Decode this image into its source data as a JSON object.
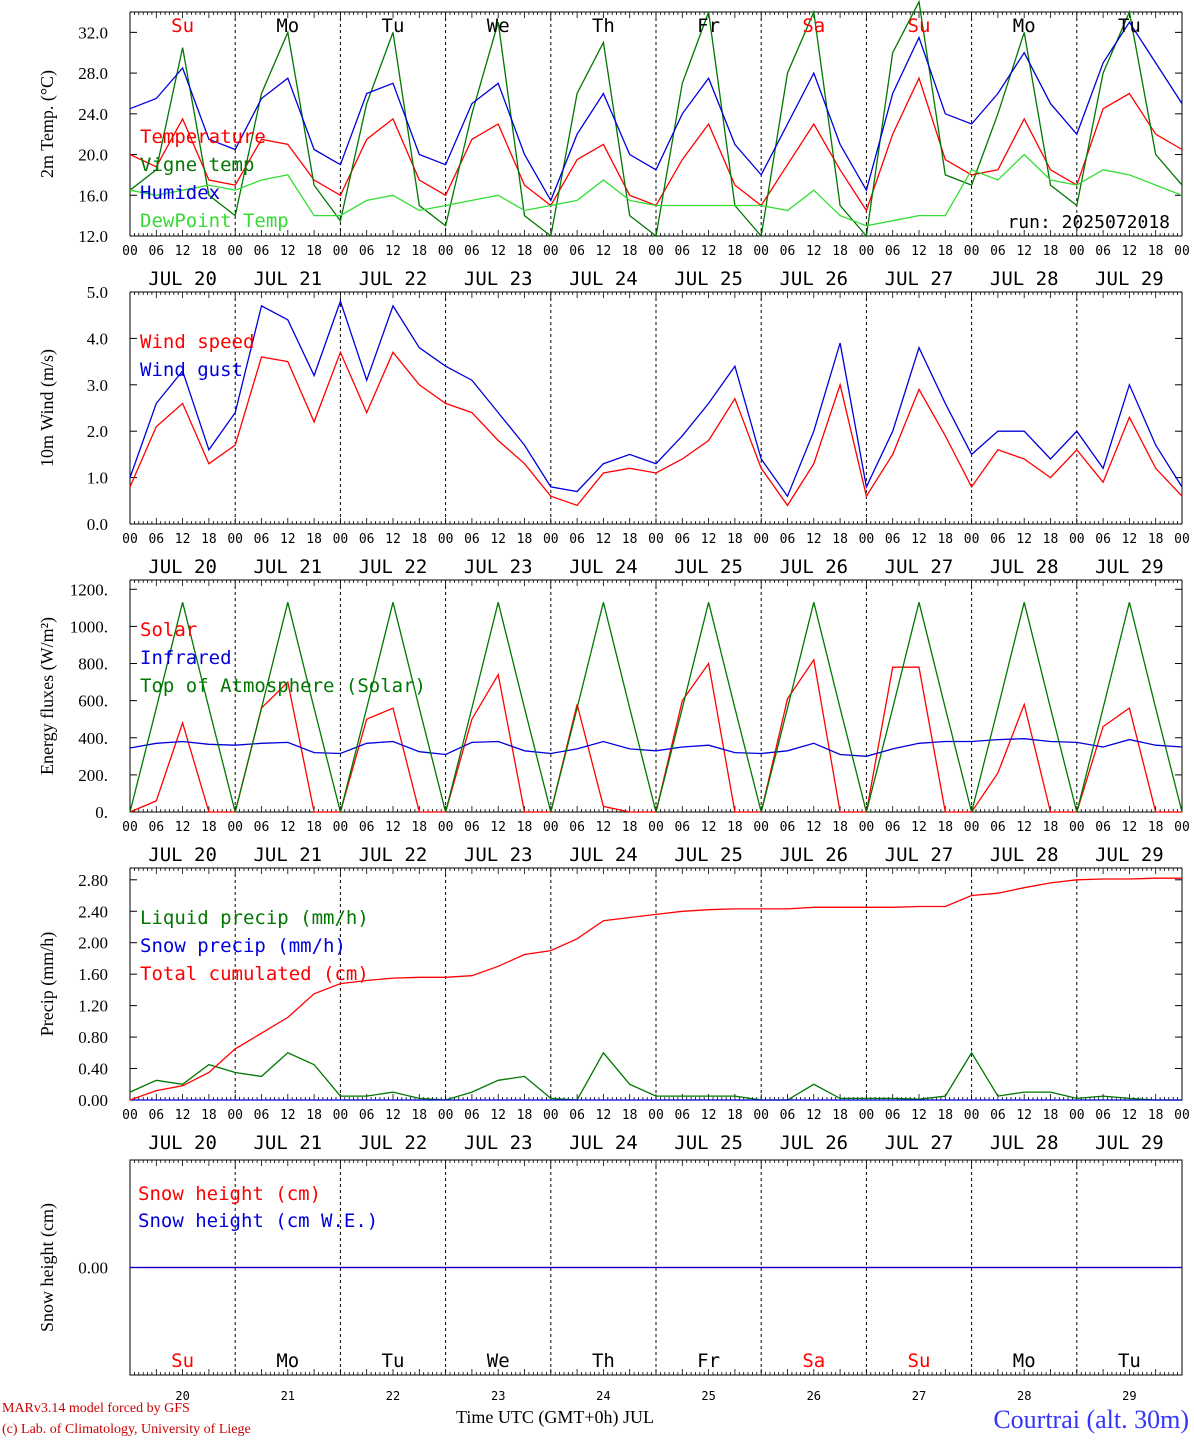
{
  "footer": {
    "credit1": "MARv3.14 model forced by GFS",
    "credit2": "(c) Lab. of Climatology, University of Liege",
    "xaxis_title": "Time UTC (GMT+0h) JUL",
    "station": "Courtrai (alt. 30m)",
    "run_label": "run: 2025072018"
  },
  "colors": {
    "red": "#ff0000",
    "blue": "#0000dd",
    "green": "#007700",
    "lightgreen": "#33dd33",
    "station": "#3333ff",
    "credit": "#cc0000"
  },
  "time_axis": {
    "hour_ticks": [
      "00",
      "06",
      "12",
      "18"
    ],
    "end_tick": "00",
    "dates": [
      "JUL 20",
      "JUL 21",
      "JUL 22",
      "JUL 23",
      "JUL 24",
      "JUL 25",
      "JUL 26",
      "JUL 27",
      "JUL 28",
      "JUL 29"
    ],
    "days": [
      {
        "label": "Su",
        "weekend": true
      },
      {
        "label": "Mo",
        "weekend": false
      },
      {
        "label": "Tu",
        "weekend": false
      },
      {
        "label": "We",
        "weekend": false
      },
      {
        "label": "Th",
        "weekend": false
      },
      {
        "label": "Fr",
        "weekend": false
      },
      {
        "label": "Sa",
        "weekend": true
      },
      {
        "label": "Su",
        "weekend": true
      },
      {
        "label": "Mo",
        "weekend": false
      },
      {
        "label": "Tu",
        "weekend": false
      }
    ],
    "day_numbers": [
      "20",
      "21",
      "22",
      "23",
      "24",
      "25",
      "26",
      "27",
      "28",
      "29"
    ]
  },
  "chart_data": [
    {
      "type": "line",
      "ylabel": "2m Temp. (°C)",
      "ylim": [
        12,
        34
      ],
      "yticks": [
        "12.0",
        "16.0",
        "20.0",
        "24.0",
        "28.0",
        "32.0"
      ],
      "x": [
        0,
        6,
        12,
        18,
        24,
        30,
        36,
        42,
        48,
        54,
        60,
        66,
        72,
        78,
        84,
        90,
        96,
        102,
        108,
        114,
        120,
        126,
        132,
        138,
        144,
        150,
        156,
        162,
        168,
        174,
        180,
        186,
        192,
        198,
        204,
        210,
        216,
        222,
        228,
        234,
        240
      ],
      "legend": [
        {
          "name": "Temperature",
          "color": "red"
        },
        {
          "name": "Vigne temp",
          "color": "green"
        },
        {
          "name": "Humidex",
          "color": "blue"
        },
        {
          "name": "DewPoint Temp",
          "color": "lightgreen"
        }
      ],
      "series": [
        {
          "name": "Temperature",
          "color": "red",
          "values": [
            20,
            18.8,
            23.5,
            17.5,
            17,
            21.5,
            21,
            17.5,
            16,
            21.5,
            23.5,
            17.5,
            16,
            21.5,
            23,
            17,
            15,
            19.5,
            21,
            16,
            15,
            19.5,
            23,
            17,
            15,
            19,
            23,
            18.5,
            14.5,
            22,
            27.5,
            19.5,
            18,
            18.5,
            23.5,
            18.5,
            17,
            24.5,
            26,
            22,
            20.5
          ]
        },
        {
          "name": "Vigne temp",
          "color": "green",
          "values": [
            16.5,
            18.5,
            30.5,
            16,
            14,
            26,
            32,
            17,
            13.5,
            25,
            32,
            15,
            13,
            24,
            33,
            14,
            12,
            26,
            31,
            14,
            12,
            27,
            34,
            15,
            12,
            28,
            34,
            15,
            12,
            30,
            35,
            18,
            17,
            24,
            32,
            17,
            15,
            28,
            34,
            20,
            17
          ]
        },
        {
          "name": "Humidex",
          "color": "blue",
          "values": [
            24.5,
            25.5,
            28.5,
            21.5,
            20.5,
            25.5,
            27.5,
            20.5,
            19,
            26,
            27,
            20,
            19,
            25,
            27,
            20,
            15.5,
            22,
            26,
            20,
            18.5,
            24,
            27.5,
            21,
            18,
            23,
            28,
            21,
            16.5,
            26,
            31.5,
            24,
            23,
            26,
            30,
            25,
            22,
            29,
            33,
            29,
            25
          ]
        },
        {
          "name": "DewPoint Temp",
          "color": "lightgreen",
          "values": [
            16.5,
            16,
            16.5,
            17,
            16.5,
            17.5,
            18,
            14,
            14,
            15.5,
            16,
            14.5,
            15,
            15.5,
            16,
            14.5,
            15,
            15.5,
            17.5,
            15.5,
            15,
            15,
            15,
            15,
            15,
            14.5,
            16.5,
            14,
            13,
            13.5,
            14,
            14,
            18.5,
            17.5,
            20,
            17.5,
            17,
            18.5,
            18,
            17,
            16
          ]
        }
      ]
    },
    {
      "type": "line",
      "ylabel": "10m Wind (m/s)",
      "ylim": [
        0,
        5
      ],
      "yticks": [
        "0.0",
        "1.0",
        "2.0",
        "3.0",
        "4.0",
        "5.0"
      ],
      "x": [
        0,
        6,
        12,
        18,
        24,
        30,
        36,
        42,
        48,
        54,
        60,
        66,
        72,
        78,
        84,
        90,
        96,
        102,
        108,
        114,
        120,
        126,
        132,
        138,
        144,
        150,
        156,
        162,
        168,
        174,
        180,
        186,
        192,
        198,
        204,
        210,
        216,
        222,
        228,
        234,
        240
      ],
      "legend": [
        {
          "name": "Wind speed",
          "color": "red"
        },
        {
          "name": "Wind gust",
          "color": "blue"
        }
      ],
      "series": [
        {
          "name": "Wind speed",
          "color": "red",
          "values": [
            0.8,
            2.1,
            2.6,
            1.3,
            1.7,
            3.6,
            3.5,
            2.2,
            3.7,
            2.4,
            3.7,
            3.0,
            2.6,
            2.4,
            1.8,
            1.3,
            0.6,
            0.4,
            1.1,
            1.2,
            1.1,
            1.4,
            1.8,
            2.7,
            1.2,
            0.4,
            1.3,
            3.0,
            0.6,
            1.5,
            2.9,
            1.9,
            0.8,
            1.6,
            1.4,
            1.0,
            1.6,
            0.9,
            2.3,
            1.2,
            0.6
          ]
        },
        {
          "name": "Wind gust",
          "color": "blue",
          "values": [
            1.0,
            2.6,
            3.3,
            1.6,
            2.4,
            4.7,
            4.4,
            3.2,
            4.8,
            3.1,
            4.7,
            3.8,
            3.4,
            3.1,
            2.4,
            1.7,
            0.8,
            0.7,
            1.3,
            1.5,
            1.3,
            1.9,
            2.6,
            3.4,
            1.4,
            0.6,
            2.0,
            3.9,
            0.8,
            2.0,
            3.8,
            2.6,
            1.5,
            2.0,
            2.0,
            1.4,
            2.0,
            1.2,
            3.0,
            1.7,
            0.8
          ]
        }
      ]
    },
    {
      "type": "line",
      "ylabel": "Energy fluxes (W/m²)",
      "ylim": [
        0,
        1250
      ],
      "yticks": [
        "0.",
        "200.",
        "400.",
        "600.",
        "800.",
        "1000.",
        "1200."
      ],
      "x": [
        0,
        6,
        12,
        18,
        24,
        30,
        36,
        42,
        48,
        54,
        60,
        66,
        72,
        78,
        84,
        90,
        96,
        102,
        108,
        114,
        120,
        126,
        132,
        138,
        144,
        150,
        156,
        162,
        168,
        174,
        180,
        186,
        192,
        198,
        204,
        210,
        216,
        222,
        228,
        234,
        240
      ],
      "legend": [
        {
          "name": "Solar",
          "color": "red"
        },
        {
          "name": "Infrared",
          "color": "blue"
        },
        {
          "name": "Top of Atmosphere (Solar)",
          "color": "green"
        }
      ],
      "series": [
        {
          "name": "Solar",
          "color": "red",
          "values": [
            0,
            60,
            480,
            0,
            0,
            560,
            700,
            0,
            0,
            500,
            560,
            0,
            0,
            500,
            740,
            0,
            0,
            580,
            30,
            0,
            0,
            600,
            800,
            0,
            0,
            610,
            820,
            0,
            0,
            780,
            780,
            0,
            0,
            210,
            580,
            0,
            0,
            460,
            560,
            0,
            0
          ]
        },
        {
          "name": "Infrared",
          "color": "blue",
          "values": [
            345,
            370,
            380,
            365,
            360,
            370,
            375,
            320,
            315,
            370,
            380,
            325,
            310,
            375,
            380,
            330,
            315,
            340,
            380,
            340,
            330,
            350,
            360,
            320,
            315,
            330,
            370,
            310,
            300,
            340,
            370,
            380,
            380,
            390,
            395,
            380,
            375,
            350,
            390,
            360,
            350
          ]
        },
        {
          "name": "Top of Atmosphere (Solar)",
          "color": "green",
          "values": [
            0,
            560,
            1130,
            560,
            0,
            560,
            1130,
            560,
            0,
            560,
            1130,
            560,
            0,
            560,
            1130,
            560,
            0,
            560,
            1130,
            560,
            0,
            560,
            1130,
            560,
            0,
            560,
            1130,
            560,
            0,
            560,
            1130,
            560,
            0,
            560,
            1130,
            560,
            0,
            560,
            1130,
            560,
            0
          ]
        }
      ]
    },
    {
      "type": "line",
      "ylabel": "Precip (mm/h)",
      "ylim": [
        0,
        2.95
      ],
      "yticks": [
        "0.00",
        "0.40",
        "0.80",
        "1.20",
        "1.60",
        "2.00",
        "2.40",
        "2.80"
      ],
      "x": [
        0,
        6,
        12,
        18,
        24,
        30,
        36,
        42,
        48,
        54,
        60,
        66,
        72,
        78,
        84,
        90,
        96,
        102,
        108,
        114,
        120,
        126,
        132,
        138,
        144,
        150,
        156,
        162,
        168,
        174,
        180,
        186,
        192,
        198,
        204,
        210,
        216,
        222,
        228,
        234,
        240
      ],
      "legend": [
        {
          "name": "Liquid precip (mm/h)",
          "color": "green"
        },
        {
          "name": "Snow precip (mm/h)",
          "color": "blue"
        },
        {
          "name": "Total cumulated (cm)",
          "color": "red"
        }
      ],
      "series": [
        {
          "name": "Liquid precip (mm/h)",
          "color": "green",
          "values": [
            0.1,
            0.25,
            0.2,
            0.45,
            0.35,
            0.3,
            0.6,
            0.45,
            0.05,
            0.05,
            0.1,
            0.02,
            0,
            0.1,
            0.25,
            0.3,
            0.02,
            0,
            0.6,
            0.2,
            0.05,
            0.05,
            0.05,
            0.05,
            0,
            0,
            0.2,
            0.02,
            0.02,
            0.02,
            0.01,
            0.05,
            0.6,
            0.05,
            0.1,
            0.1,
            0.02,
            0.05,
            0.02,
            0,
            0
          ]
        },
        {
          "name": "Snow precip (mm/h)",
          "color": "blue",
          "values": [
            0,
            0,
            0,
            0,
            0,
            0,
            0,
            0,
            0,
            0,
            0,
            0,
            0,
            0,
            0,
            0,
            0,
            0,
            0,
            0,
            0,
            0,
            0,
            0,
            0,
            0,
            0,
            0,
            0,
            0,
            0,
            0,
            0,
            0,
            0,
            0,
            0,
            0,
            0,
            0,
            0
          ]
        },
        {
          "name": "Total cumulated (cm)",
          "color": "red",
          "values": [
            0,
            0.12,
            0.18,
            0.35,
            0.65,
            0.85,
            1.05,
            1.35,
            1.48,
            1.52,
            1.55,
            1.56,
            1.56,
            1.58,
            1.7,
            1.85,
            1.9,
            2.05,
            2.28,
            2.32,
            2.36,
            2.4,
            2.42,
            2.43,
            2.43,
            2.43,
            2.45,
            2.45,
            2.45,
            2.45,
            2.46,
            2.46,
            2.6,
            2.63,
            2.7,
            2.76,
            2.8,
            2.81,
            2.81,
            2.82,
            2.82
          ]
        }
      ]
    },
    {
      "type": "line",
      "ylabel": "Snow height (cm)",
      "ylim": [
        -1,
        1
      ],
      "yticks": [
        "0.00"
      ],
      "x": [
        0,
        240
      ],
      "legend": [
        {
          "name": "Snow height (cm)",
          "color": "red"
        },
        {
          "name": "Snow height (cm W.E.)",
          "color": "blue"
        }
      ],
      "series": [
        {
          "name": "Snow height (cm)",
          "color": "red",
          "values": [
            0,
            0
          ]
        },
        {
          "name": "Snow height (cm W.E.)",
          "color": "blue",
          "values": [
            0,
            0
          ]
        }
      ]
    }
  ]
}
